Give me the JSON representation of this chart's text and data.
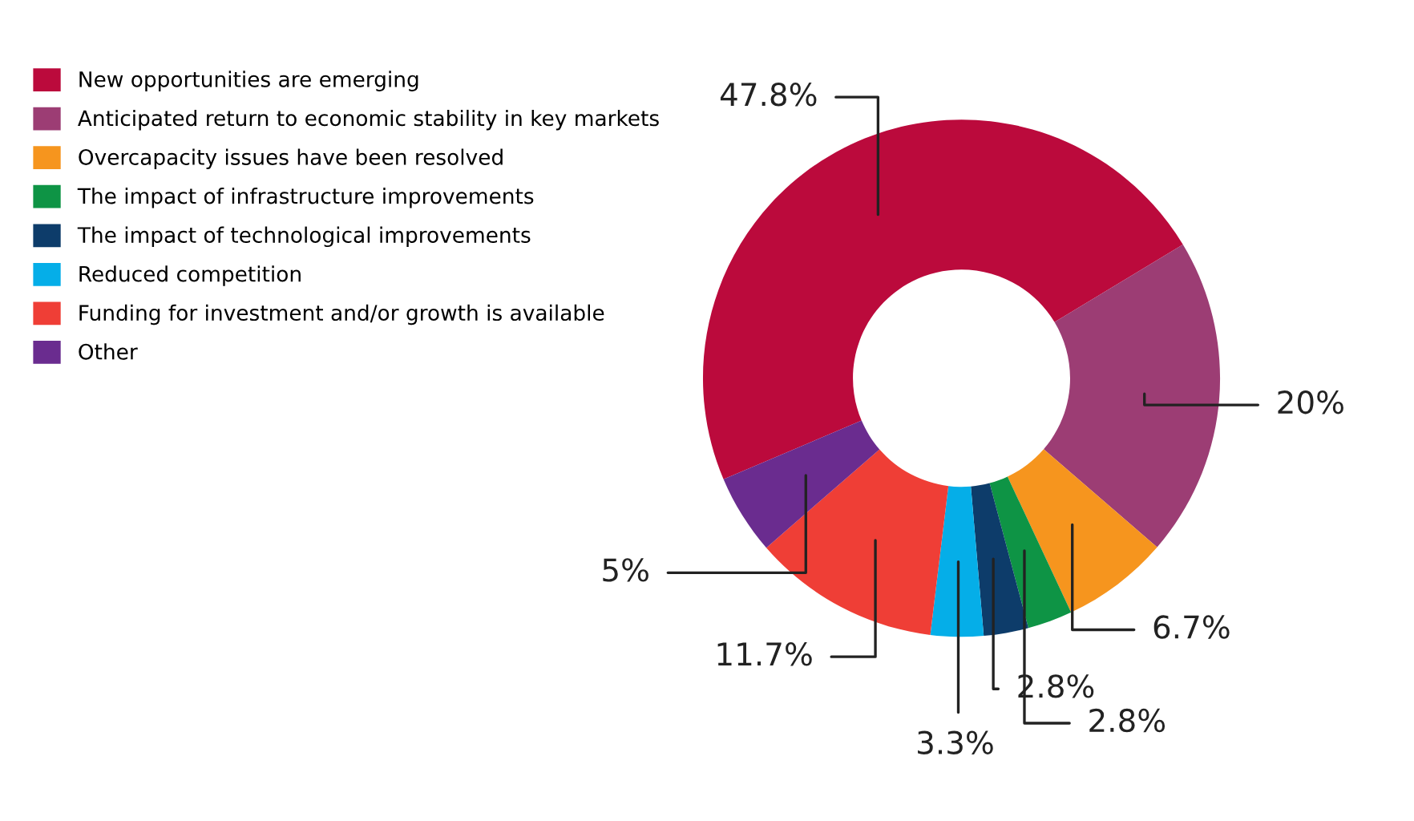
{
  "chart_data": {
    "type": "donut",
    "categories": [
      "New opportunities are emerging",
      "Anticipated return to economic stability in key markets",
      "Overcapacity issues have been resolved",
      "The impact of infrastructure improvements",
      "The impact of technological improvements",
      "Reduced competition",
      "Funding for investment and/or growth is available",
      "Other"
    ],
    "values": [
      47.8,
      20,
      6.7,
      2.8,
      2.8,
      3.3,
      11.7,
      5
    ],
    "value_labels": [
      "47.8%",
      "20%",
      "6.7%",
      "2.8%",
      "2.8%",
      "3.3%",
      "11.7%",
      "5%"
    ],
    "colors": [
      "#bb0a3c",
      "#9c3d74",
      "#f6951e",
      "#0e9445",
      "#0d3c6a",
      "#05aee8",
      "#ef3e36",
      "#6a2c8f"
    ],
    "legend": "top left"
  }
}
